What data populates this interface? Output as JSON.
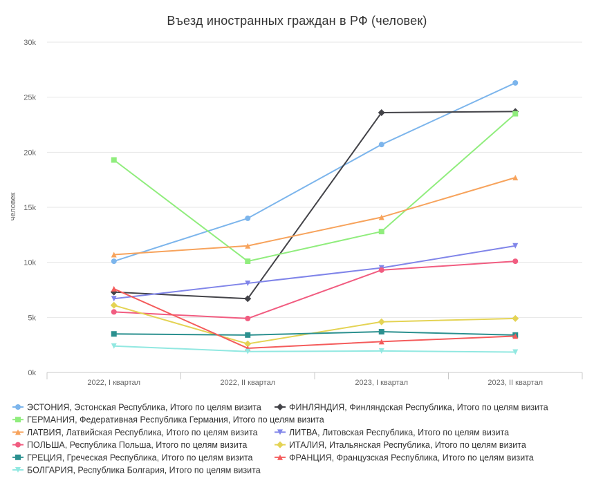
{
  "chart_data": {
    "type": "line",
    "title": "Въезд иностранных граждан в РФ (человек)",
    "xlabel": "",
    "ylabel": "человек",
    "ylim": [
      0,
      30000
    ],
    "y_ticks": [
      0,
      5000,
      10000,
      15000,
      20000,
      25000,
      30000
    ],
    "y_tick_labels": [
      "0k",
      "5k",
      "10k",
      "15k",
      "20k",
      "25k",
      "30k"
    ],
    "grid": true,
    "legend_position": "bottom",
    "categories": [
      "2022, I квартал",
      "2022, II квартал",
      "2023, I квартал",
      "2023, II квартал"
    ],
    "series": [
      {
        "name": "ЭСТОНИЯ, Эстонская Республика, Итого по целям визита",
        "color": "#7cb5ec",
        "marker": "circle",
        "values": [
          10100,
          14000,
          20700,
          26300
        ]
      },
      {
        "name": "ФИНЛЯНДИЯ, Финляндская Республика, Итого по целям визита",
        "color": "#434348",
        "marker": "diamond",
        "values": [
          7300,
          6700,
          23600,
          23700
        ]
      },
      {
        "name": "ГЕРМАНИЯ, Федеративная Республика Германия, Итого по целям визита",
        "color": "#90ed7d",
        "marker": "square",
        "values": [
          19300,
          10100,
          12800,
          23500
        ]
      },
      {
        "name": "ЛАТВИЯ, Латвийская Республика, Итого по целям визита",
        "color": "#f7a35c",
        "marker": "triangle",
        "values": [
          10700,
          11500,
          14100,
          17700
        ]
      },
      {
        "name": "ЛИТВА, Литовская Республика, Итого по целям визита",
        "color": "#8085e9",
        "marker": "triangle-down",
        "values": [
          6700,
          8100,
          9500,
          11500
        ]
      },
      {
        "name": "ПОЛЬША, Республика Польша, Итого по целям визита",
        "color": "#f15c80",
        "marker": "circle",
        "values": [
          5500,
          4900,
          9300,
          10100
        ]
      },
      {
        "name": "ИТАЛИЯ, Итальянская Республика, Итого по целям визита",
        "color": "#e4d354",
        "marker": "diamond",
        "values": [
          6100,
          2600,
          4600,
          4900
        ]
      },
      {
        "name": "ГРЕЦИЯ, Греческая Республика, Итого по целям визита",
        "color": "#2b908f",
        "marker": "square",
        "values": [
          3500,
          3400,
          3700,
          3400
        ]
      },
      {
        "name": "ФРАНЦИЯ, Французская Республика, Итого по целям визита",
        "color": "#f45b5b",
        "marker": "triangle",
        "values": [
          7600,
          2200,
          2800,
          3300
        ]
      },
      {
        "name": "БОЛГАРИЯ, Республика Болгария, Итого по целям визита",
        "color": "#91e8e1",
        "marker": "triangle-down",
        "values": [
          2400,
          1900,
          1950,
          1850
        ]
      }
    ]
  }
}
